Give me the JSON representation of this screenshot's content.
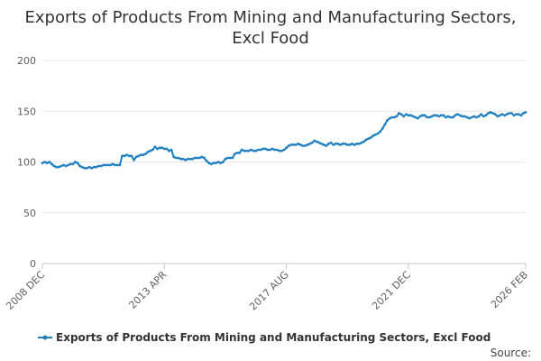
{
  "chart_data": {
    "type": "line",
    "title_lines": [
      "Exports of Products From Mining and Manufacturing Sectors,",
      "Excl Food"
    ],
    "x_tick_labels": [
      "2008 DEC",
      "2013 APR",
      "2017 AUG",
      "2021 DEC",
      "2026 FEB"
    ],
    "x_tick_months": [
      0,
      52,
      104,
      156,
      206
    ],
    "x_range": [
      0,
      206
    ],
    "ylim": [
      0,
      200
    ],
    "y_ticks": [
      0,
      50,
      100,
      150,
      200
    ],
    "grid": true,
    "legend_position": "bottom",
    "series": [
      {
        "name": "Exports of Products From Mining and Manufacturing Sectors, Excl Food",
        "color": "#1f7fc0",
        "points": [
          [
            0,
            99
          ],
          [
            1,
            100
          ],
          [
            2,
            99
          ],
          [
            3,
            100
          ],
          [
            4,
            98
          ],
          [
            5,
            96
          ],
          [
            6,
            95
          ],
          [
            7,
            95
          ],
          [
            8,
            96
          ],
          [
            9,
            97
          ],
          [
            10,
            96
          ],
          [
            11,
            97
          ],
          [
            12,
            98
          ],
          [
            13,
            98
          ],
          [
            14,
            100
          ],
          [
            15,
            99
          ],
          [
            16,
            96
          ],
          [
            17,
            95
          ],
          [
            18,
            94
          ],
          [
            19,
            94
          ],
          [
            20,
            95
          ],
          [
            21,
            94
          ],
          [
            22,
            95
          ],
          [
            23,
            95
          ],
          [
            24,
            96
          ],
          [
            25,
            96
          ],
          [
            26,
            97
          ],
          [
            27,
            97
          ],
          [
            28,
            97
          ],
          [
            29,
            97
          ],
          [
            30,
            98
          ],
          [
            31,
            97
          ],
          [
            32,
            97
          ],
          [
            33,
            97
          ],
          [
            34,
            106
          ],
          [
            35,
            106
          ],
          [
            36,
            107
          ],
          [
            37,
            106
          ],
          [
            38,
            106
          ],
          [
            39,
            102
          ],
          [
            40,
            105
          ],
          [
            41,
            106
          ],
          [
            42,
            107
          ],
          [
            43,
            107
          ],
          [
            44,
            108
          ],
          [
            45,
            110
          ],
          [
            46,
            111
          ],
          [
            47,
            112
          ],
          [
            48,
            115
          ],
          [
            49,
            113
          ],
          [
            50,
            114
          ],
          [
            51,
            114
          ],
          [
            52,
            113
          ],
          [
            53,
            113
          ],
          [
            54,
            111
          ],
          [
            55,
            112
          ],
          [
            56,
            105
          ],
          [
            57,
            104
          ],
          [
            58,
            104
          ],
          [
            59,
            103
          ],
          [
            60,
            103
          ],
          [
            61,
            102
          ],
          [
            62,
            103
          ],
          [
            63,
            103
          ],
          [
            64,
            103
          ],
          [
            65,
            104
          ],
          [
            66,
            104
          ],
          [
            67,
            104
          ],
          [
            68,
            105
          ],
          [
            69,
            104
          ],
          [
            70,
            101
          ],
          [
            71,
            99
          ],
          [
            72,
            98
          ],
          [
            73,
            99
          ],
          [
            74,
            99
          ],
          [
            75,
            100
          ],
          [
            76,
            99
          ],
          [
            77,
            100
          ],
          [
            78,
            103
          ],
          [
            79,
            104
          ],
          [
            80,
            104
          ],
          [
            81,
            104
          ],
          [
            82,
            108
          ],
          [
            83,
            109
          ],
          [
            84,
            109
          ],
          [
            85,
            112
          ],
          [
            86,
            111
          ],
          [
            87,
            111
          ],
          [
            88,
            111
          ],
          [
            89,
            112
          ],
          [
            90,
            111
          ],
          [
            91,
            111
          ],
          [
            92,
            112
          ],
          [
            93,
            112
          ],
          [
            94,
            113
          ],
          [
            95,
            113
          ],
          [
            96,
            112
          ],
          [
            97,
            112
          ],
          [
            98,
            113
          ],
          [
            99,
            112
          ],
          [
            100,
            112
          ],
          [
            101,
            111
          ],
          [
            102,
            111
          ],
          [
            103,
            112
          ],
          [
            104,
            114
          ],
          [
            105,
            116
          ],
          [
            106,
            117
          ],
          [
            107,
            117
          ],
          [
            108,
            117
          ],
          [
            109,
            118
          ],
          [
            110,
            117
          ],
          [
            111,
            116
          ],
          [
            112,
            116
          ],
          [
            113,
            117
          ],
          [
            114,
            118
          ],
          [
            115,
            119
          ],
          [
            116,
            121
          ],
          [
            117,
            120
          ],
          [
            118,
            119
          ],
          [
            119,
            118
          ],
          [
            120,
            117
          ],
          [
            121,
            116
          ],
          [
            122,
            118
          ],
          [
            123,
            119
          ],
          [
            124,
            117
          ],
          [
            125,
            118
          ],
          [
            126,
            118
          ],
          [
            127,
            117
          ],
          [
            128,
            118
          ],
          [
            129,
            118
          ],
          [
            130,
            117
          ],
          [
            131,
            117
          ],
          [
            132,
            118
          ],
          [
            133,
            117
          ],
          [
            134,
            118
          ],
          [
            135,
            118
          ],
          [
            136,
            119
          ],
          [
            137,
            120
          ],
          [
            138,
            122
          ],
          [
            139,
            123
          ],
          [
            140,
            124
          ],
          [
            141,
            126
          ],
          [
            142,
            127
          ],
          [
            143,
            128
          ],
          [
            144,
            130
          ],
          [
            145,
            133
          ],
          [
            146,
            137
          ],
          [
            147,
            141
          ],
          [
            148,
            143
          ],
          [
            149,
            144
          ],
          [
            150,
            144
          ],
          [
            151,
            145
          ],
          [
            152,
            148
          ],
          [
            153,
            147
          ],
          [
            154,
            145
          ],
          [
            155,
            147
          ],
          [
            156,
            146
          ],
          [
            157,
            146
          ],
          [
            158,
            145
          ],
          [
            159,
            144
          ],
          [
            160,
            143
          ],
          [
            161,
            145
          ],
          [
            162,
            146
          ],
          [
            163,
            146
          ],
          [
            164,
            144
          ],
          [
            165,
            144
          ],
          [
            166,
            145
          ],
          [
            167,
            146
          ],
          [
            168,
            146
          ],
          [
            169,
            145
          ],
          [
            170,
            146
          ],
          [
            171,
            146
          ],
          [
            172,
            144
          ],
          [
            173,
            145
          ],
          [
            174,
            144
          ],
          [
            175,
            144
          ],
          [
            176,
            146
          ],
          [
            177,
            147
          ],
          [
            178,
            146
          ],
          [
            179,
            145
          ],
          [
            180,
            145
          ],
          [
            181,
            144
          ],
          [
            182,
            143
          ],
          [
            183,
            144
          ],
          [
            184,
            145
          ],
          [
            185,
            144
          ],
          [
            186,
            145
          ],
          [
            187,
            147
          ],
          [
            188,
            145
          ],
          [
            189,
            146
          ],
          [
            190,
            148
          ],
          [
            191,
            149
          ],
          [
            192,
            148
          ],
          [
            193,
            147
          ],
          [
            194,
            145
          ],
          [
            195,
            146
          ],
          [
            196,
            147
          ],
          [
            197,
            146
          ],
          [
            198,
            147
          ],
          [
            199,
            148
          ],
          [
            200,
            148
          ],
          [
            201,
            146
          ],
          [
            202,
            147
          ],
          [
            203,
            147
          ],
          [
            204,
            146
          ],
          [
            205,
            148
          ],
          [
            206,
            149
          ]
        ]
      }
    ]
  },
  "footer": {
    "source_label": "Source:"
  }
}
